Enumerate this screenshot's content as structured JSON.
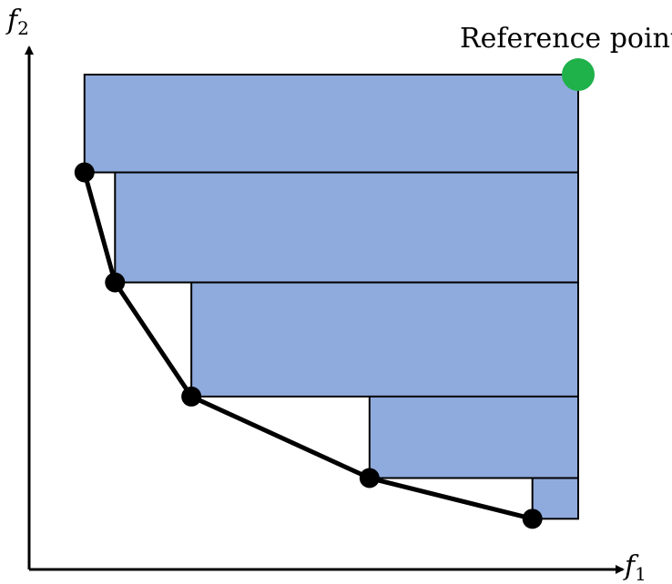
{
  "diagram": {
    "x_axis": {
      "base": "f",
      "subscript": "1"
    },
    "y_axis": {
      "base": "f",
      "subscript": "2"
    },
    "reference_label": "Reference point",
    "colors": {
      "rectangle_fill": "#8faadc",
      "rectangle_stroke": "#000000",
      "front_line": "#000000",
      "front_point": "#000000",
      "reference_point": "#1fb14a",
      "axis": "#000000"
    },
    "reference_point": {
      "f1": 10,
      "f2": 10
    },
    "pareto_points": [
      {
        "f1": 0.3,
        "f2": 7.6
      },
      {
        "f1": 0.9,
        "f2": 4.9
      },
      {
        "f1": 2.4,
        "f2": 2.1
      },
      {
        "f1": 5.9,
        "f2": 0.1
      },
      {
        "f1": 9.1,
        "f2": -0.9
      }
    ],
    "rectangles": [
      {
        "f1_from": 0.3,
        "f2_from": 7.6
      },
      {
        "f1_from": 0.9,
        "f2_from": 4.9
      },
      {
        "f1_from": 2.4,
        "f2_from": 2.1
      },
      {
        "f1_from": 5.9,
        "f2_from": 0.1
      },
      {
        "f1_from": 9.1,
        "f2_from": -0.9
      }
    ]
  }
}
